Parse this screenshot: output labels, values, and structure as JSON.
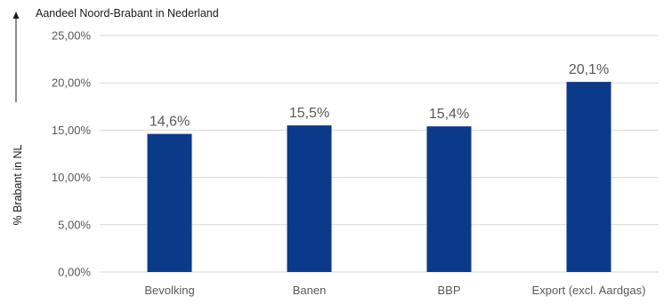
{
  "chart_data": {
    "type": "bar",
    "title": "Aandeel Noord-Brabant in Nederland",
    "ylabel": "% Brabant in NL",
    "xlabel": "",
    "categories": [
      "Bevolking",
      "Banen",
      "BBP",
      "Export (excl. Aardgas)"
    ],
    "values": [
      14.6,
      15.5,
      15.4,
      20.1
    ],
    "data_labels": [
      "14,6%",
      "15,5%",
      "15,4%",
      "20,1%"
    ],
    "ylim": [
      0,
      25
    ],
    "yticks": [
      0,
      5,
      10,
      15,
      20,
      25
    ],
    "ytick_labels": [
      "0,00%",
      "5,00%",
      "10,00%",
      "15,00%",
      "20,00%",
      "25,00%"
    ],
    "grid": true,
    "legend": "none",
    "colors": {
      "bar": "#0b3a8a",
      "grid": "#d9d9d9",
      "text": "#595959",
      "title": "#1a1a1a"
    }
  }
}
